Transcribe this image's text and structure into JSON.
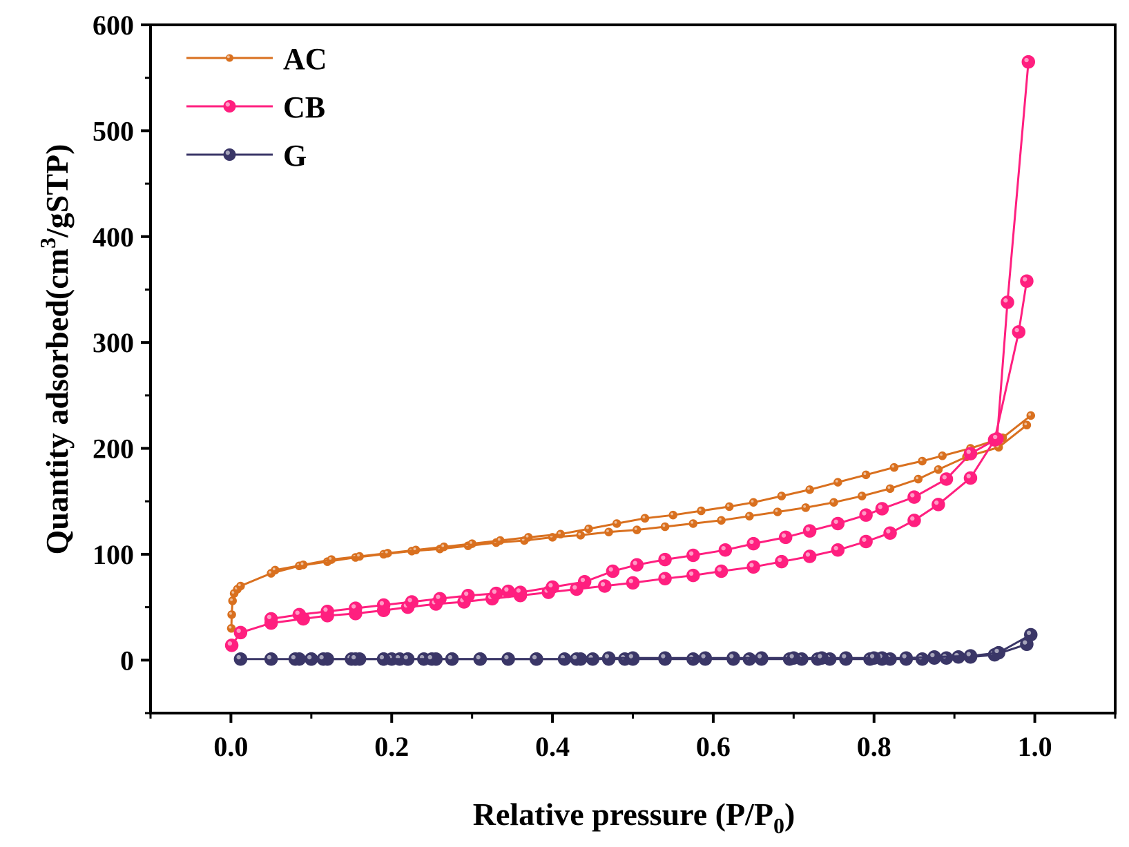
{
  "chart_data": {
    "type": "line",
    "title": "",
    "xlabel": "Relative pressure (P/P",
    "xlabel_sub": "0",
    "xlabel_end": ")",
    "ylabel": "Quantity adsorbed(cm",
    "ylabel_sup": "3",
    "ylabel_end": "/gSTP)",
    "xlim": [
      -0.1,
      1.1
    ],
    "ylim": [
      -50,
      600
    ],
    "xticks": [
      0.0,
      0.2,
      0.4,
      0.6,
      0.8,
      1.0
    ],
    "xtick_labels": [
      "0.0",
      "0.2",
      "0.4",
      "0.6",
      "0.8",
      "1.0"
    ],
    "yticks": [
      0,
      100,
      200,
      300,
      400,
      500,
      600
    ],
    "ytick_labels": [
      "0",
      "100",
      "200",
      "300",
      "400",
      "500",
      "600"
    ],
    "grid": false,
    "legend_position": "top-left",
    "series": [
      {
        "name": "AC",
        "color": "#d9701f",
        "marker_size": "small",
        "branches": [
          {
            "x": [
              0.0005,
              0.001,
              0.002,
              0.004,
              0.008,
              0.012,
              0.05,
              0.085,
              0.12,
              0.155,
              0.19,
              0.225,
              0.26,
              0.295,
              0.33,
              0.365,
              0.4,
              0.435,
              0.47,
              0.505,
              0.54,
              0.575,
              0.61,
              0.645,
              0.68,
              0.715,
              0.75,
              0.785,
              0.82,
              0.855,
              0.88,
              0.915,
              0.955,
              0.99
            ],
            "y": [
              30,
              43,
              56,
              63,
              67,
              70,
              82,
              89,
              93,
              97,
              100,
              103,
              105,
              108,
              111,
              113,
              116,
              118,
              121,
              123,
              126,
              129,
              132,
              136,
              140,
              144,
              149,
              155,
              162,
              171,
              180,
              192,
              201,
              222
            ]
          },
          {
            "x": [
              0.995,
              0.96,
              0.92,
              0.885,
              0.86,
              0.825,
              0.79,
              0.755,
              0.72,
              0.685,
              0.65,
              0.62,
              0.585,
              0.55,
              0.515,
              0.48,
              0.445,
              0.41,
              0.37,
              0.335,
              0.3,
              0.265,
              0.23,
              0.195,
              0.16,
              0.125,
              0.09,
              0.055
            ],
            "y": [
              231,
              210,
              200,
              193,
              188,
              182,
              175,
              168,
              161,
              155,
              149,
              145,
              141,
              137,
              134,
              129,
              124,
              119,
              116,
              113,
              110,
              107,
              104,
              101,
              98,
              95,
              90,
              85
            ]
          }
        ]
      },
      {
        "name": "CB",
        "color": "#ff1f7f",
        "marker_size": "large",
        "branches": [
          {
            "x": [
              0.001,
              0.012,
              0.05,
              0.09,
              0.12,
              0.155,
              0.19,
              0.22,
              0.255,
              0.29,
              0.325,
              0.36,
              0.395,
              0.43,
              0.465,
              0.5,
              0.54,
              0.575,
              0.61,
              0.65,
              0.685,
              0.72,
              0.755,
              0.79,
              0.82,
              0.85,
              0.88,
              0.92,
              0.95,
              0.98,
              0.99
            ],
            "y": [
              14,
              26,
              35,
              39,
              42,
              44,
              47,
              50,
              53,
              55,
              58,
              61,
              64,
              67,
              70,
              73,
              77,
              80,
              84,
              88,
              93,
              98,
              104,
              112,
              120,
              132,
              147,
              172,
              208,
              310,
              358
            ]
          },
          {
            "x": [
              0.992,
              0.966,
              0.953,
              0.92,
              0.89,
              0.85,
              0.81,
              0.79,
              0.755,
              0.72,
              0.69,
              0.65,
              0.615,
              0.575,
              0.54,
              0.505,
              0.475,
              0.44,
              0.4,
              0.36,
              0.345,
              0.33,
              0.295,
              0.26,
              0.225,
              0.19,
              0.155,
              0.12,
              0.085,
              0.05
            ],
            "y": [
              565,
              338,
              209,
              195,
              171,
              154,
              143,
              137,
              129,
              122,
              116,
              110,
              104,
              99,
              95,
              90,
              84,
              74,
              69,
              64,
              65,
              63,
              61,
              58,
              55,
              52,
              49,
              46,
              43,
              39
            ]
          }
        ]
      },
      {
        "name": "G",
        "color": "#3a3667",
        "marker_size": "large",
        "branches": [
          {
            "x": [
              0.012,
              0.05,
              0.085,
              0.1,
              0.12,
              0.15,
              0.16,
              0.19,
              0.2,
              0.21,
              0.22,
              0.24,
              0.255,
              0.275,
              0.31,
              0.345,
              0.38,
              0.415,
              0.435,
              0.45,
              0.47,
              0.49,
              0.5,
              0.54,
              0.575,
              0.59,
              0.625,
              0.645,
              0.66,
              0.695,
              0.71,
              0.73,
              0.745,
              0.765,
              0.795,
              0.81,
              0.82,
              0.84,
              0.86,
              0.875,
              0.89,
              0.905,
              0.92,
              0.95,
              0.99
            ],
            "y": [
              1,
              1,
              1,
              1,
              1,
              1,
              1,
              1,
              1,
              1,
              1,
              1,
              1,
              1,
              1,
              1,
              1,
              1,
              1,
              1,
              1,
              1,
              1,
              1,
              1,
              1,
              1,
              1,
              1,
              1,
              1,
              1,
              1,
              1,
              1,
              1,
              1,
              1,
              1,
              2,
              2,
              3,
              3,
              5,
              15
            ]
          },
          {
            "x": [
              0.995,
              0.955,
              0.92,
              0.875,
              0.84,
              0.81,
              0.8,
              0.765,
              0.735,
              0.7,
              0.66,
              0.625,
              0.59,
              0.54,
              0.5,
              0.47,
              0.43,
              0.38,
              0.345,
              0.31,
              0.275,
              0.25,
              0.22,
              0.19,
              0.155,
              0.115,
              0.1,
              0.08
            ],
            "y": [
              24,
              7,
              4,
              3,
              2,
              2,
              2,
              2,
              2,
              2,
              2,
              2,
              2,
              2,
              2,
              2,
              1,
              1,
              1,
              1,
              1,
              1,
              1,
              1,
              1,
              1,
              1,
              1
            ]
          }
        ]
      }
    ]
  }
}
